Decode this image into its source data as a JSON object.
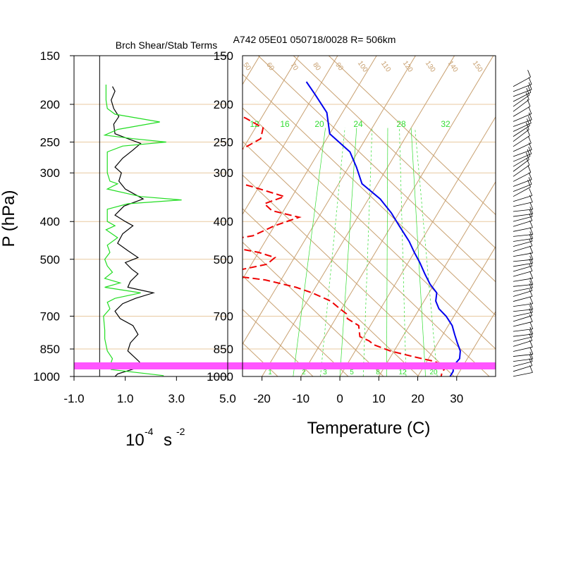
{
  "figure": {
    "title": "A742 05E01 050718/0028 R= 506km",
    "left_panel_title": "Brch Shear/Stab Terms",
    "pressure_axis_label": "P (hPa)",
    "left_x_label_main": "10",
    "left_x_label_exp": "-4",
    "left_x_label_unit": "s",
    "left_x_label_exp2": "-2",
    "right_x_label": "Temperature (C)"
  },
  "colors": {
    "temperature": "#0000ee",
    "dewpoint": "#ee0000",
    "skewt_grid": "#c8a070",
    "mixing_ratio": "#33dd33",
    "shear_term": "#22dd22",
    "stability_term": "#000000",
    "surface_band": "#ff55ff",
    "barb": "#000000",
    "pressure_rule": "#e8c9a0"
  },
  "chart_data": [
    {
      "type": "line",
      "title": "Brch Shear/Stab Terms",
      "xlabel": "10-4 s -2",
      "ylabel": "P (hPa)",
      "xlim": [
        -1.0,
        5.0
      ],
      "ylim": [
        1000,
        150
      ],
      "y_scale": "log-pressure",
      "x_ticks": [
        "-1.0",
        "1.0",
        "3.0",
        "5.0"
      ],
      "y_ticks": [
        "150",
        "200",
        "250",
        "300",
        "400",
        "500",
        "700",
        "850",
        "1000"
      ],
      "series": [
        {
          "color": "#000000",
          "points": [
            [
              0.5,
              180
            ],
            [
              0.6,
              185
            ],
            [
              0.45,
              195
            ],
            [
              0.55,
              205
            ],
            [
              0.75,
              215
            ],
            [
              0.55,
              225
            ],
            [
              0.6,
              238
            ],
            [
              1.1,
              245
            ],
            [
              1.6,
              252
            ],
            [
              1.3,
              262
            ],
            [
              0.9,
              275
            ],
            [
              0.6,
              290
            ],
            [
              0.85,
              300
            ],
            [
              0.75,
              315
            ],
            [
              1.0,
              330
            ],
            [
              1.7,
              350
            ],
            [
              0.95,
              365
            ],
            [
              0.6,
              385
            ],
            [
              1.0,
              400
            ],
            [
              1.3,
              410
            ],
            [
              0.9,
              430
            ],
            [
              0.7,
              455
            ],
            [
              1.1,
              475
            ],
            [
              1.5,
              495
            ],
            [
              1.0,
              510
            ],
            [
              1.25,
              530
            ],
            [
              1.5,
              545
            ],
            [
              1.2,
              570
            ],
            [
              1.1,
              590
            ],
            [
              2.1,
              610
            ],
            [
              1.4,
              630
            ],
            [
              0.9,
              650
            ],
            [
              0.6,
              680
            ],
            [
              0.8,
              710
            ],
            [
              1.3,
              740
            ],
            [
              1.5,
              780
            ],
            [
              1.2,
              820
            ],
            [
              1.1,
              860
            ],
            [
              1.5,
              910
            ],
            [
              1.7,
              940
            ],
            [
              0.7,
              985
            ],
            [
              0.6,
              1000
            ]
          ]
        },
        {
          "color": "#22dd22",
          "points": [
            [
              0.25,
              178
            ],
            [
              0.25,
              195
            ],
            [
              0.3,
              205
            ],
            [
              0.6,
              212
            ],
            [
              2.35,
              222
            ],
            [
              0.7,
              232
            ],
            [
              0.2,
              240
            ],
            [
              1.3,
              245
            ],
            [
              2.6,
              250
            ],
            [
              0.9,
              256
            ],
            [
              0.3,
              265
            ],
            [
              0.3,
              280
            ],
            [
              0.3,
              300
            ],
            [
              0.4,
              315
            ],
            [
              0.7,
              320
            ],
            [
              0.3,
              330
            ],
            [
              1.6,
              345
            ],
            [
              3.2,
              352
            ],
            [
              1.1,
              360
            ],
            [
              0.3,
              372
            ],
            [
              0.3,
              400
            ],
            [
              0.6,
              410
            ],
            [
              0.25,
              420
            ],
            [
              0.7,
              440
            ],
            [
              0.3,
              460
            ],
            [
              0.4,
              480
            ],
            [
              0.2,
              500
            ],
            [
              0.3,
              520
            ],
            [
              0.5,
              540
            ],
            [
              0.2,
              560
            ],
            [
              0.8,
              575
            ],
            [
              0.2,
              590
            ],
            [
              1.6,
              610
            ],
            [
              0.6,
              630
            ],
            [
              0.3,
              645
            ],
            [
              0.4,
              670
            ],
            [
              0.15,
              700
            ],
            [
              0.2,
              760
            ],
            [
              0.2,
              800
            ],
            [
              0.3,
              860
            ],
            [
              0.5,
              900
            ],
            [
              0.4,
              940
            ],
            [
              0.45,
              960
            ],
            [
              2.5,
              995
            ]
          ]
        }
      ]
    },
    {
      "type": "line",
      "subtype": "skew-T log-P",
      "title": "A742 05E01 050718/0028 R= 506km",
      "xlabel": "Temperature (C)",
      "ylabel": "P (hPa)",
      "xlim": [
        -25,
        40
      ],
      "ylim": [
        1000,
        150
      ],
      "x_ticks": [
        "-20",
        "-10",
        "0",
        "10",
        "20",
        "30"
      ],
      "y_ticks": [
        "150",
        "200",
        "250",
        "300",
        "400",
        "500",
        "700",
        "850",
        "1000"
      ],
      "mixing_ratio_labels": [
        "12",
        "16",
        "20",
        "24",
        "28",
        "32"
      ],
      "mixing_ratio_lower_labels": [
        "1",
        "2",
        "3",
        "5",
        "8",
        "12",
        "20"
      ],
      "dry_adiabat_labels": [
        "50",
        "60",
        "70",
        "80",
        "90",
        "100",
        "110",
        "120",
        "130",
        "140",
        "150"
      ],
      "series": [
        {
          "color": "#0000ee",
          "style": "solid",
          "points": [
            [
              -54,
              175
            ],
            [
              -50,
              188
            ],
            [
              -44,
              210
            ],
            [
              -40,
              238
            ],
            [
              -32,
              265
            ],
            [
              -28,
              290
            ],
            [
              -24,
              320
            ],
            [
              -17,
              350
            ],
            [
              -12,
              380
            ],
            [
              -8,
              410
            ],
            [
              -3,
              450
            ],
            [
              0,
              480
            ],
            [
              3,
              510
            ],
            [
              6,
              545
            ],
            [
              9,
              580
            ],
            [
              12,
              610
            ],
            [
              13,
              640
            ],
            [
              15,
              670
            ],
            [
              18,
              700
            ],
            [
              21,
              740
            ],
            [
              23,
              780
            ],
            [
              25,
              820
            ],
            [
              27,
              860
            ],
            [
              28,
              900
            ],
            [
              27.5,
              940
            ],
            [
              28.3,
              970
            ],
            [
              28.3,
              1000
            ]
          ]
        },
        {
          "color": "#ee0000",
          "style": "dashed",
          "points": [
            [
              -74,
              197
            ],
            [
              -70,
              207
            ],
            [
              -64,
              217
            ],
            [
              -58,
              230
            ],
            [
              -57,
              245
            ],
            [
              -60,
              260
            ],
            [
              -64,
              275
            ],
            [
              -62,
              290
            ],
            [
              -64,
              305
            ],
            [
              -52,
              325
            ],
            [
              -42,
              345
            ],
            [
              -46,
              360
            ],
            [
              -43,
              375
            ],
            [
              -35,
              390
            ],
            [
              -40,
              410
            ],
            [
              -44,
              435
            ],
            [
              -52,
              450
            ],
            [
              -48,
              465
            ],
            [
              -40,
              480
            ],
            [
              -35,
              495
            ],
            [
              -36,
              515
            ],
            [
              -43,
              535
            ],
            [
              -44,
              550
            ],
            [
              -34,
              565
            ],
            [
              -25,
              590
            ],
            [
              -20,
              610
            ],
            [
              -14,
              640
            ],
            [
              -11,
              665
            ],
            [
              -8,
              690
            ],
            [
              -7,
              710
            ],
            [
              -3,
              740
            ],
            [
              -2,
              765
            ],
            [
              -1,
              790
            ],
            [
              2,
              810
            ],
            [
              4,
              830
            ],
            [
              9,
              860
            ],
            [
              16,
              890
            ],
            [
              22,
              915
            ],
            [
              26,
              945
            ],
            [
              25.5,
              970
            ],
            [
              26,
              1000
            ]
          ]
        }
      ]
    }
  ],
  "wind_profile_shown": "wind barbs along right edge, 180-1000 hPa"
}
